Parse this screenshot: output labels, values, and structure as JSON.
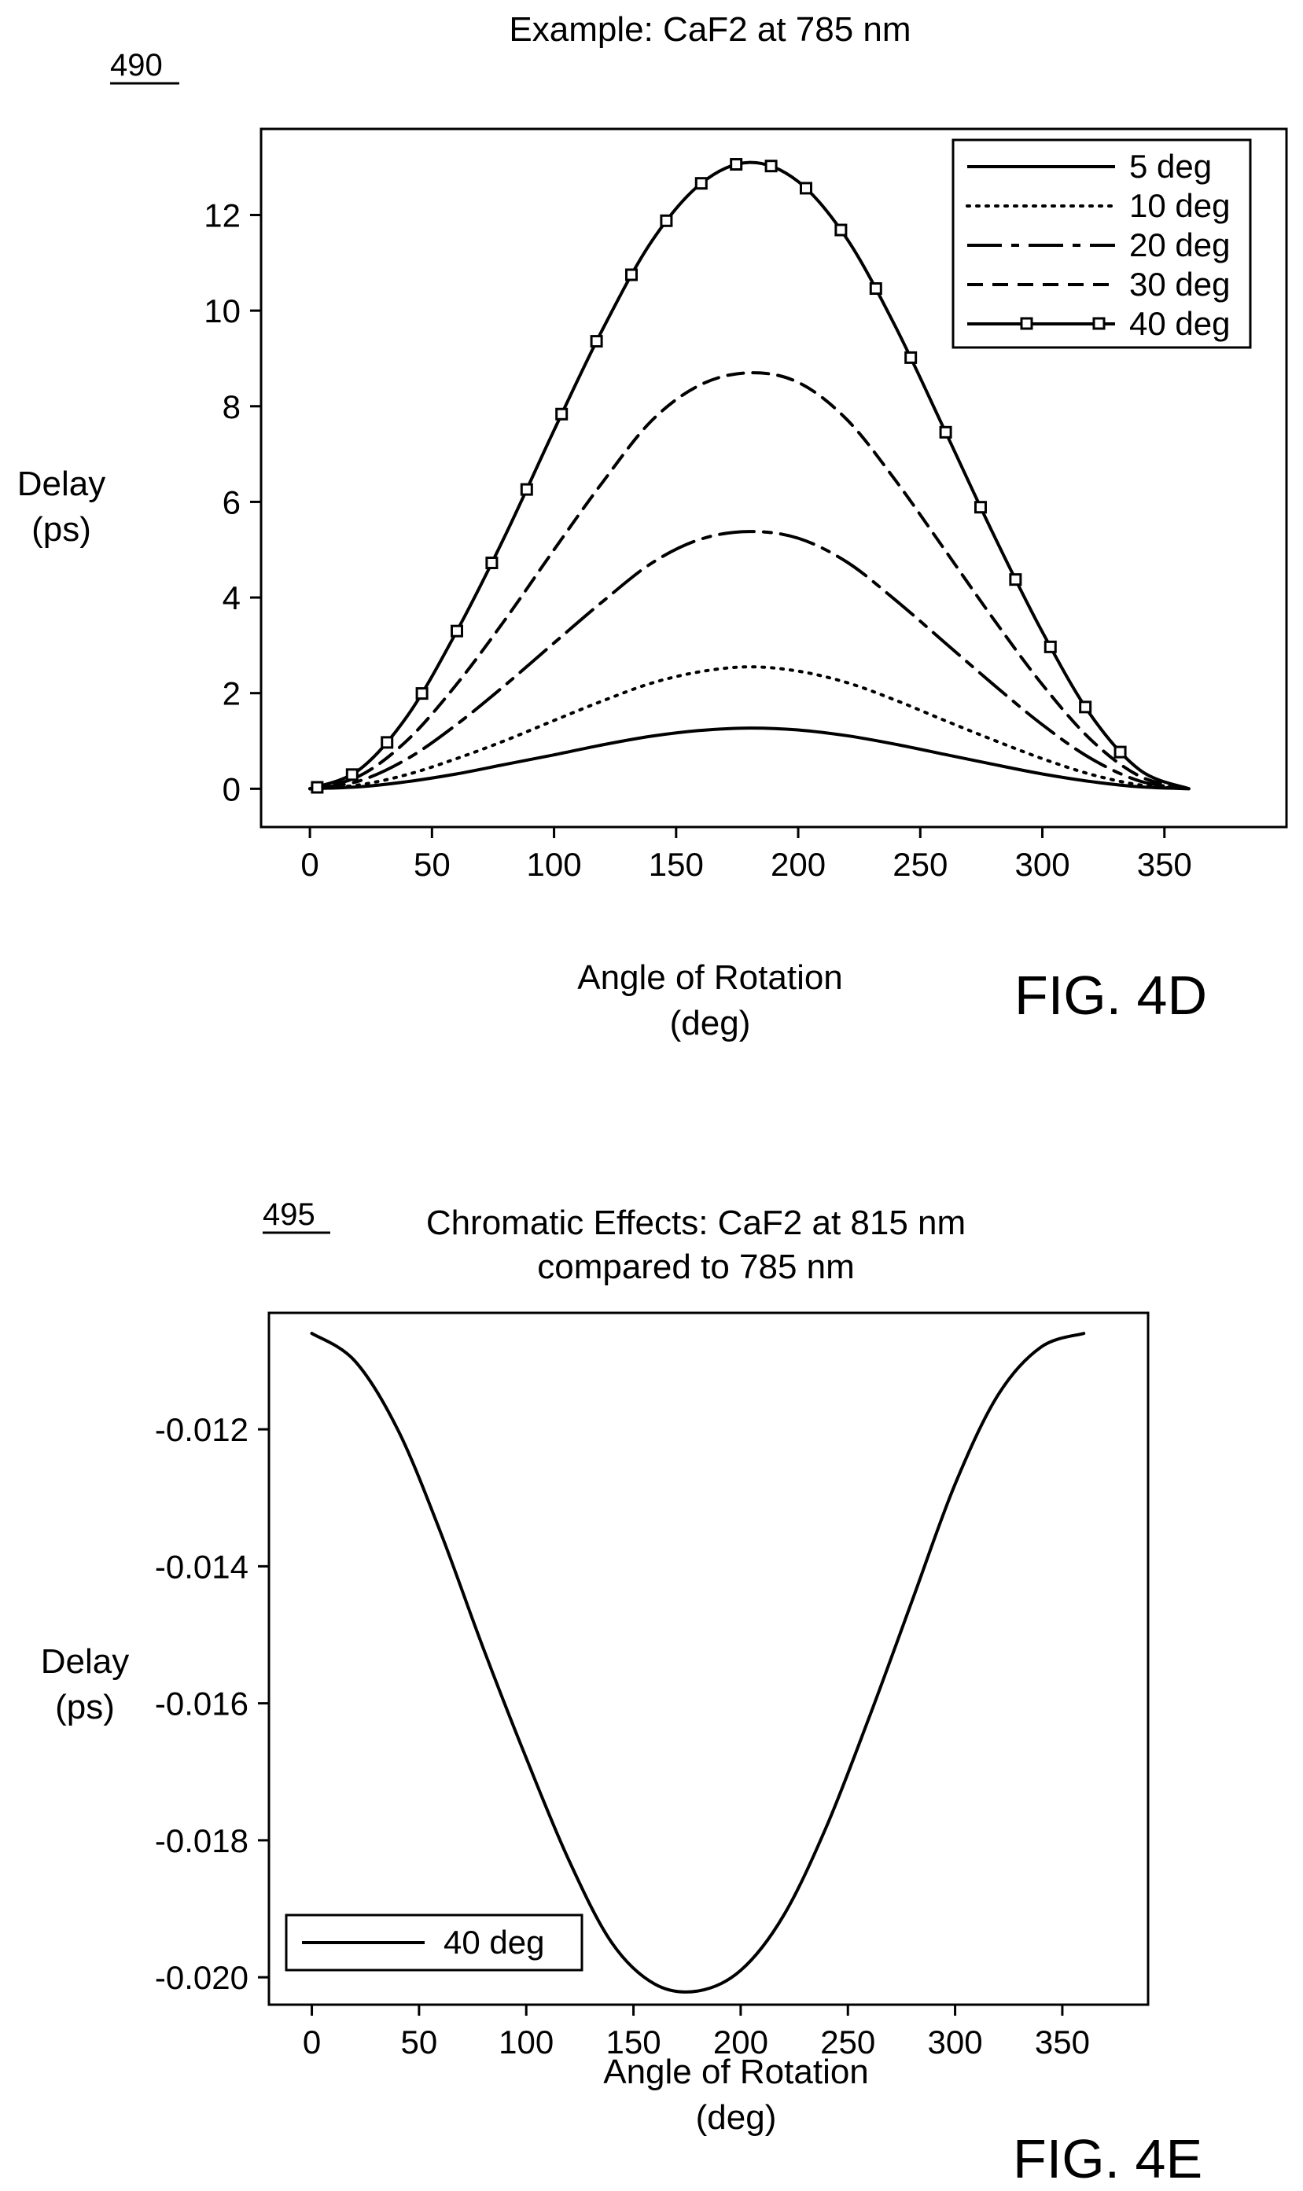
{
  "figures": [
    {
      "fig_label": "FIG. 4D",
      "ref_num": "490",
      "ylabel_line1": "Delay",
      "ylabel_line2": "(ps)",
      "xlabel_line1": "Angle of Rotation",
      "xlabel_line2": "(deg)"
    },
    {
      "fig_label": "FIG. 4E",
      "ref_num": "495",
      "ylabel_line1": "Delay",
      "ylabel_line2": "(ps)",
      "xlabel_line1": "Angle of Rotation",
      "xlabel_line2": "(deg)"
    }
  ],
  "chart_data": [
    {
      "type": "line",
      "title": "Example: CaF2 at 785 nm",
      "xlim": [
        -20,
        400
      ],
      "ylim": [
        -0.8,
        13.8
      ],
      "xticks": [
        0,
        50,
        100,
        150,
        200,
        250,
        300,
        350
      ],
      "yticks": [
        0,
        2,
        4,
        6,
        8,
        10,
        12
      ],
      "grid": false,
      "legend_position": "top-right",
      "x": [
        0,
        20,
        40,
        60,
        80,
        100,
        120,
        140,
        160,
        180,
        200,
        220,
        240,
        260,
        280,
        300,
        320,
        340,
        360
      ],
      "series": [
        {
          "name": "5 deg",
          "style": "solid",
          "values": [
            0,
            0.04,
            0.15,
            0.31,
            0.51,
            0.71,
            0.92,
            1.1,
            1.22,
            1.27,
            1.23,
            1.11,
            0.93,
            0.72,
            0.51,
            0.31,
            0.15,
            0.04,
            0
          ]
        },
        {
          "name": "10 deg",
          "style": "dotted",
          "values": [
            0,
            0.08,
            0.3,
            0.63,
            1.01,
            1.43,
            1.84,
            2.21,
            2.45,
            2.55,
            2.46,
            2.22,
            1.85,
            1.43,
            1.02,
            0.63,
            0.3,
            0.08,
            0
          ]
        },
        {
          "name": "20 deg",
          "style": "dashdot",
          "values": [
            0,
            0.16,
            0.63,
            1.34,
            2.17,
            3.05,
            3.92,
            4.72,
            5.22,
            5.38,
            5.24,
            4.74,
            3.94,
            3.06,
            2.18,
            1.34,
            0.63,
            0.16,
            0
          ]
        },
        {
          "name": "30 deg",
          "style": "dashed",
          "values": [
            0,
            0.26,
            1.02,
            2.18,
            3.54,
            5.0,
            6.42,
            7.7,
            8.45,
            8.7,
            8.5,
            7.72,
            6.44,
            5.0,
            3.55,
            2.18,
            1.02,
            0.26,
            0
          ]
        },
        {
          "name": "40 deg",
          "style": "solid-markers",
          "values": [
            0,
            0.39,
            1.53,
            3.28,
            5.3,
            7.5,
            9.62,
            11.45,
            12.65,
            13.1,
            12.7,
            11.5,
            9.65,
            7.5,
            5.32,
            3.28,
            1.53,
            0.39,
            0
          ]
        }
      ]
    },
    {
      "type": "line",
      "title": "Chromatic Effects: CaF2 at 815 nm",
      "subtitle": "compared to 785 nm",
      "xlim": [
        -20,
        390
      ],
      "ylim": [
        -0.0204,
        -0.0103
      ],
      "xticks": [
        0,
        50,
        100,
        150,
        200,
        250,
        300,
        350
      ],
      "yticks": [
        -0.012,
        -0.014,
        -0.016,
        -0.018,
        -0.02
      ],
      "ytick_labels": [
        "-0.012",
        "-0.014",
        "-0.016",
        "-0.018",
        "-0.020"
      ],
      "grid": false,
      "legend_position": "bottom-left",
      "x": [
        0,
        20,
        40,
        60,
        80,
        100,
        120,
        140,
        160,
        180,
        200,
        220,
        240,
        260,
        280,
        300,
        320,
        340,
        360
      ],
      "series": [
        {
          "name": "40 deg",
          "style": "solid",
          "values": [
            -0.0106,
            -0.011,
            -0.012,
            -0.0135,
            -0.0152,
            -0.0168,
            -0.0183,
            -0.0195,
            -0.0201,
            -0.0202,
            -0.0199,
            -0.0191,
            -0.0178,
            -0.0162,
            -0.0145,
            -0.0128,
            -0.0115,
            -0.0108,
            -0.0106
          ]
        }
      ]
    }
  ]
}
